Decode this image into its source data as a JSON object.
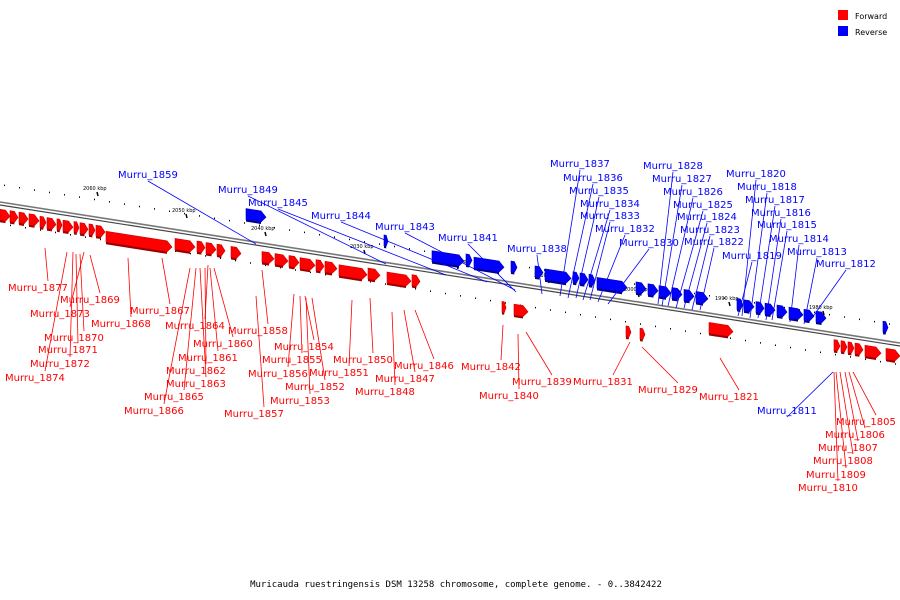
{
  "legend": {
    "items": [
      {
        "label": "Forward",
        "color": "#ff0000"
      },
      {
        "label": "Reverse",
        "color": "#0000ff"
      }
    ]
  },
  "caption": "Muricauda ruestringensis DSM 13258 chromosome, complete genome. - 0..3842422",
  "ticks": [
    "2060 kbp",
    "2050 kbp",
    "2040 kbp",
    "2030 kbp",
    "2020 kbp",
    "2010 kbp",
    "2000 kbp",
    "1990 kbp",
    "1980 kbp"
  ],
  "colors": {
    "forward": "#ff0000",
    "reverse": "#0000ff",
    "axis": "#666666"
  },
  "forward_labels": [
    "Murru_1877",
    "Murru_1869",
    "Murru_1873",
    "Murru_1870",
    "Murru_1871",
    "Murru_1872",
    "Murru_1874",
    "Murru_1867",
    "Murru_1868",
    "Murru_1864",
    "Murru_1860",
    "Murru_1861",
    "Murru_1862",
    "Murru_1863",
    "Murru_1865",
    "Murru_1866",
    "Murru_1858",
    "Murru_1854",
    "Murru_1855",
    "Murru_1856",
    "Murru_1852",
    "Murru_1853",
    "Murru_1857",
    "Murru_1850",
    "Murru_1851",
    "Murru_1846",
    "Murru_1847",
    "Murru_1848",
    "Murru_1842",
    "Murru_1839",
    "Murru_1840",
    "Murru_1831",
    "Murru_1829",
    "Murru_1821",
    "Murru_1805",
    "Murru_1806",
    "Murru_1807",
    "Murru_1808",
    "Murru_1809",
    "Murru_1810"
  ],
  "reverse_labels": [
    "Murru_1859",
    "Murru_1849",
    "Murru_1845",
    "Murru_1844",
    "Murru_1843",
    "Murru_1841",
    "Murru_1838",
    "Murru_1837",
    "Murru_1836",
    "Murru_1835",
    "Murru_1834",
    "Murru_1833",
    "Murru_1832",
    "Murru_1830",
    "Murru_1828",
    "Murru_1827",
    "Murru_1826",
    "Murru_1825",
    "Murru_1824",
    "Murru_1823",
    "Murru_1822",
    "Murru_1820",
    "Murru_1818",
    "Murru_1817",
    "Murru_1816",
    "Murru_1815",
    "Murru_1814",
    "Murru_1819",
    "Murru_1813",
    "Murru_1812",
    "Murru_1811"
  ]
}
